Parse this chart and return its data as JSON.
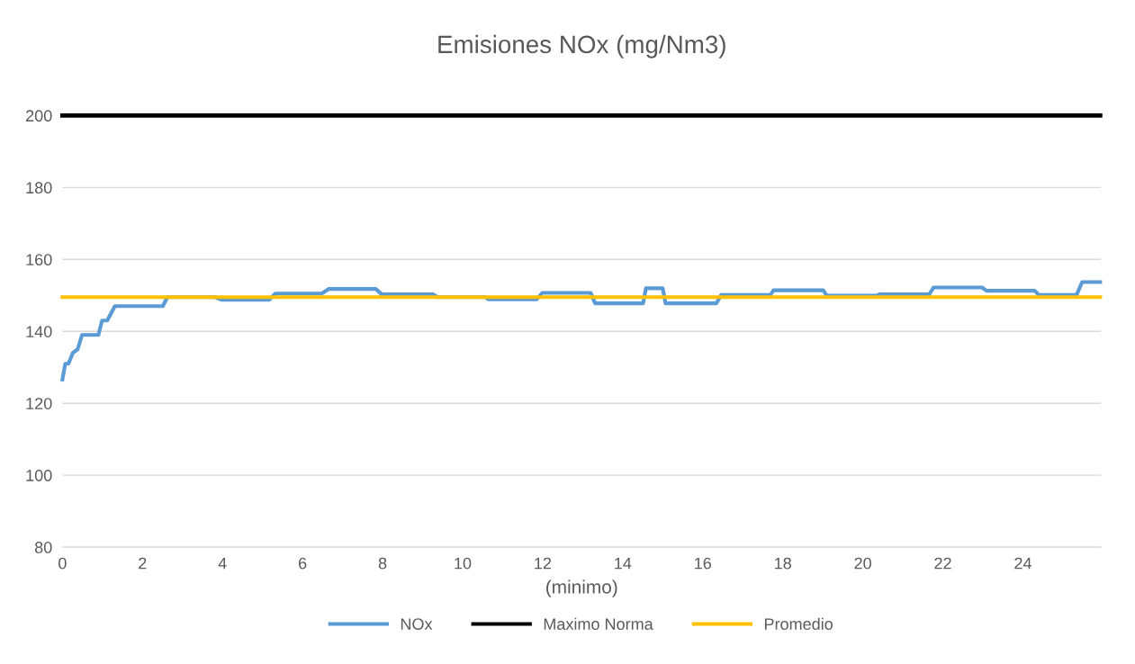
{
  "chart_data": {
    "type": "line",
    "title": "Emisiones NOx (mg/Nm3)",
    "xlabel": "(minimo)",
    "xlim": [
      0,
      25.95
    ],
    "xticks": [
      0,
      2,
      4,
      6,
      8,
      10,
      12,
      14,
      16,
      18,
      20,
      22,
      24
    ],
    "ylim": [
      80,
      200
    ],
    "yticks": [
      80,
      100,
      120,
      140,
      160,
      180,
      200
    ],
    "grid": "y",
    "legend": "bottom",
    "marker": "none",
    "line_style": "solid",
    "series": [
      {
        "name": "NOx",
        "color": "#5b9bd5",
        "x": [
          0,
          0.07,
          0.15,
          0.26,
          0.38,
          0.49,
          0.9,
          0.99,
          1.12,
          1.31,
          2.51,
          2.62,
          3.82,
          3.97,
          5.17,
          5.32,
          6.48,
          6.66,
          7.83,
          7.98,
          9.26,
          9.37,
          10.57,
          10.64,
          11.85,
          11.99,
          13.2,
          13.31,
          14.51,
          14.58,
          15.0,
          15.07,
          16.34,
          16.46,
          17.69,
          17.77,
          19.01,
          19.1,
          20.35,
          20.42,
          21.66,
          21.77,
          22.98,
          23.09,
          24.29,
          24.4,
          25.34,
          25.48,
          25.93
        ],
        "values": [
          126.6,
          131,
          131,
          134,
          135,
          139,
          139,
          143,
          143,
          147,
          147,
          149.5,
          149.5,
          148.8,
          148.8,
          150.5,
          150.5,
          151.8,
          151.8,
          150.3,
          150.3,
          149.5,
          149.5,
          148.9,
          148.9,
          150.7,
          150.7,
          147.8,
          147.8,
          152,
          152,
          147.8,
          147.8,
          150.1,
          150.1,
          151.4,
          151.4,
          149.9,
          149.9,
          150.3,
          150.3,
          152.2,
          152.2,
          151.3,
          151.3,
          150.1,
          150.1,
          153.7,
          153.7
        ]
      },
      {
        "name": "Maximo Norma",
        "color": "#000000",
        "x": [
          0,
          25.93
        ],
        "values": [
          200,
          200
        ]
      },
      {
        "name": "Promedio",
        "color": "#ffc000",
        "x": [
          0,
          25.93
        ],
        "values": [
          149.5,
          149.5
        ]
      }
    ]
  }
}
